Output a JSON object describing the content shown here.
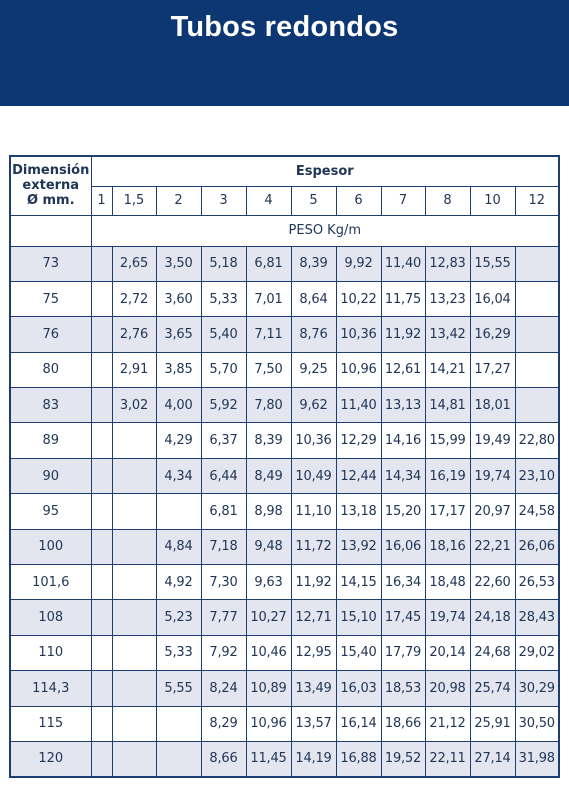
{
  "title": "Tubos redondos",
  "table": {
    "dimension_header": [
      "Dimensión",
      "externa",
      "Ø mm."
    ],
    "espesor_label": "Espesor",
    "espesor_columns": [
      "1",
      "1,5",
      "2",
      "3",
      "4",
      "5",
      "6",
      "7",
      "8",
      "10",
      "12"
    ],
    "peso_label": "PESO Kg/m",
    "rows": [
      {
        "dim": "73",
        "values": [
          "",
          "2,65",
          "3,50",
          "5,18",
          "6,81",
          "8,39",
          "9,92",
          "11,40",
          "12,83",
          "15,55",
          ""
        ]
      },
      {
        "dim": "75",
        "values": [
          "",
          "2,72",
          "3,60",
          "5,33",
          "7,01",
          "8,64",
          "10,22",
          "11,75",
          "13,23",
          "16,04",
          ""
        ]
      },
      {
        "dim": "76",
        "values": [
          "",
          "2,76",
          "3,65",
          "5,40",
          "7,11",
          "8,76",
          "10,36",
          "11,92",
          "13,42",
          "16,29",
          ""
        ]
      },
      {
        "dim": "80",
        "values": [
          "",
          "2,91",
          "3,85",
          "5,70",
          "7,50",
          "9,25",
          "10,96",
          "12,61",
          "14,21",
          "17,27",
          ""
        ]
      },
      {
        "dim": "83",
        "values": [
          "",
          "3,02",
          "4,00",
          "5,92",
          "7,80",
          "9,62",
          "11,40",
          "13,13",
          "14,81",
          "18,01",
          ""
        ]
      },
      {
        "dim": "89",
        "values": [
          "",
          "",
          "4,29",
          "6,37",
          "8,39",
          "10,36",
          "12,29",
          "14,16",
          "15,99",
          "19,49",
          "22,80"
        ]
      },
      {
        "dim": "90",
        "values": [
          "",
          "",
          "4,34",
          "6,44",
          "8,49",
          "10,49",
          "12,44",
          "14,34",
          "16,19",
          "19,74",
          "23,10"
        ]
      },
      {
        "dim": "95",
        "values": [
          "",
          "",
          "",
          "6,81",
          "8,98",
          "11,10",
          "13,18",
          "15,20",
          "17,17",
          "20,97",
          "24,58"
        ]
      },
      {
        "dim": "100",
        "values": [
          "",
          "",
          "4,84",
          "7,18",
          "9,48",
          "11,72",
          "13,92",
          "16,06",
          "18,16",
          "22,21",
          "26,06"
        ]
      },
      {
        "dim": "101,6",
        "values": [
          "",
          "",
          "4,92",
          "7,30",
          "9,63",
          "11,92",
          "14,15",
          "16,34",
          "18,48",
          "22,60",
          "26,53"
        ]
      },
      {
        "dim": "108",
        "values": [
          "",
          "",
          "5,23",
          "7,77",
          "10,27",
          "12,71",
          "15,10",
          "17,45",
          "19,74",
          "24,18",
          "28,43"
        ]
      },
      {
        "dim": "110",
        "values": [
          "",
          "",
          "5,33",
          "7,92",
          "10,46",
          "12,95",
          "15,40",
          "17,79",
          "20,14",
          "24,68",
          "29,02"
        ]
      },
      {
        "dim": "114,3",
        "values": [
          "",
          "",
          "5,55",
          "8,24",
          "10,89",
          "13,49",
          "16,03",
          "18,53",
          "20,98",
          "25,74",
          "30,29"
        ]
      },
      {
        "dim": "115",
        "values": [
          "",
          "",
          "",
          "8,29",
          "10,96",
          "13,57",
          "16,14",
          "18,66",
          "21,12",
          "25,91",
          "30,50"
        ]
      },
      {
        "dim": "120",
        "values": [
          "",
          "",
          "",
          "8,66",
          "11,45",
          "14,19",
          "16,88",
          "19,52",
          "22,11",
          "27,14",
          "31,98"
        ]
      }
    ]
  },
  "colors": {
    "banner": "#0c3772",
    "border": "#1e3d70",
    "row_shade": "#e3e6ef"
  }
}
